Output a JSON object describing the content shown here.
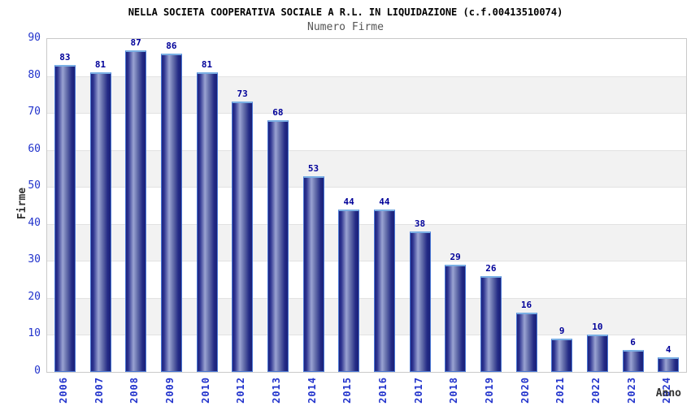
{
  "chart_data": {
    "type": "bar",
    "title": "NELLA SOCIETA COOPERATIVA SOCIALE A R.L. IN LIQUIDAZIONE (c.f.00413510074)",
    "subtitle": "Numero Firme",
    "xlabel": "Anno",
    "ylabel": "Firme",
    "categories": [
      "2006",
      "2007",
      "2008",
      "2009",
      "2010",
      "2012",
      "2013",
      "2014",
      "2015",
      "2016",
      "2017",
      "2018",
      "2019",
      "2020",
      "2021",
      "2022",
      "2023",
      "2024"
    ],
    "values": [
      83,
      81,
      87,
      86,
      81,
      73,
      68,
      53,
      44,
      44,
      38,
      29,
      26,
      16,
      9,
      10,
      6,
      4
    ],
    "ylim": [
      0,
      90
    ],
    "ytick_interval": 10,
    "grid": true,
    "legend_position": "none",
    "band_pattern": "alternating gray bands on odd decades (10-20, 30-40, 50-60, 70-80)",
    "colors": {
      "title": "#000000",
      "subtitle": "#555555",
      "tick_label": "#2233cc",
      "value_label": "#000099",
      "axis_title": "#333333",
      "plot_border": "#c9c9c9",
      "grid_line": "#e2e2e2",
      "band_gray": "#f2f2f2",
      "bar_dark": "#1e2480",
      "bar_light": "#9aa3d2",
      "bar_border_top": "#7aafe4",
      "bar_border_side": "#4a77d4"
    }
  }
}
